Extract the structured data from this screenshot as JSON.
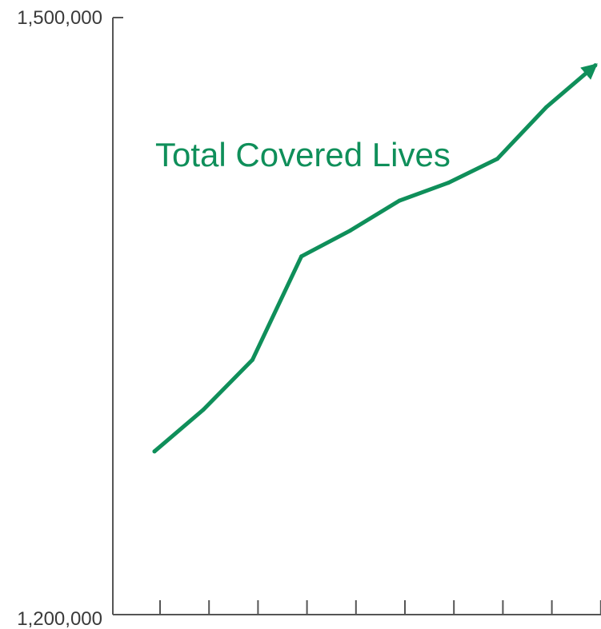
{
  "chart_data": {
    "type": "line",
    "ylim": [
      1200000,
      1500000
    ],
    "y_tick_labels": [
      "1,500,000",
      "1,200,000"
    ],
    "x_tick_count": 10,
    "grid": false,
    "series": [
      {
        "name": "Total Covered Lives",
        "color": "#0f8f5a",
        "end_marker": "arrow",
        "y": [
          1282000,
          1303000,
          1328000,
          1380000,
          1393000,
          1408000,
          1417000,
          1429000,
          1455000,
          1476000
        ]
      }
    ]
  }
}
